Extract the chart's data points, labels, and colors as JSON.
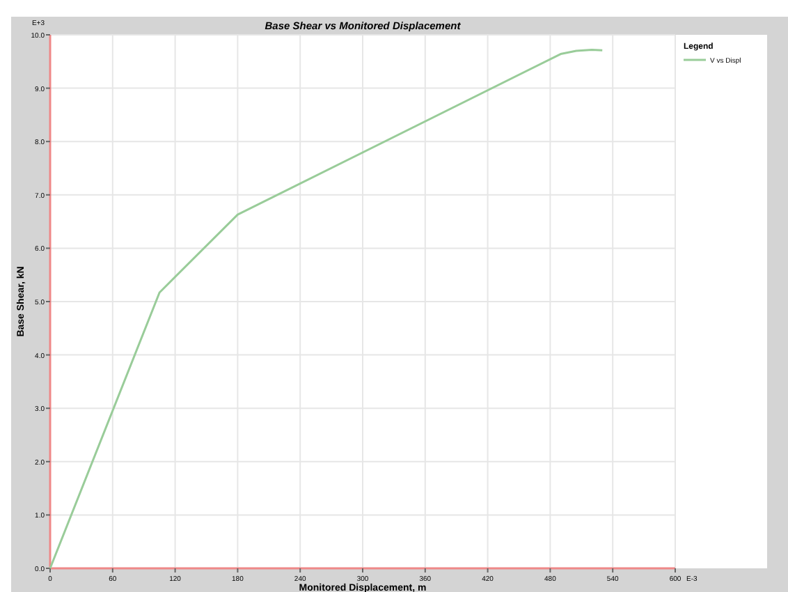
{
  "chart_data": {
    "type": "line",
    "title": "Base Shear vs Monitored Displacement",
    "xlabel": "Monitored Displacement, m",
    "ylabel": "Base Shear, kN",
    "legend_title": "Legend",
    "annotations": [
      "E+3",
      "E-3"
    ],
    "x": [
      0,
      105,
      180,
      490,
      505,
      520,
      530
    ],
    "series": [
      {
        "name": "V vs Displ",
        "color": "#99cc99",
        "values": [
          0,
          5.17,
          6.63,
          9.64,
          9.7,
          9.72,
          9.71
        ]
      }
    ],
    "xlim": [
      0,
      600
    ],
    "xticks": [
      0,
      60,
      120,
      180,
      240,
      300,
      360,
      420,
      480,
      540,
      600
    ],
    "ylim": [
      0,
      10
    ],
    "yticks": [
      {
        "value": 0,
        "label": "0.0"
      },
      {
        "value": 1,
        "label": "1.0"
      },
      {
        "value": 2,
        "label": "2.0"
      },
      {
        "value": 3,
        "label": "3.0"
      },
      {
        "value": 4,
        "label": "4.0"
      },
      {
        "value": 5,
        "label": "5.0"
      },
      {
        "value": 6,
        "label": "6.0"
      },
      {
        "value": 7,
        "label": "7.0"
      },
      {
        "value": 8,
        "label": "8.0"
      },
      {
        "value": 9,
        "label": "9.0"
      },
      {
        "value": 10,
        "label": "10.0"
      }
    ],
    "grid": true,
    "legend": "top right",
    "marker": "none",
    "line_style": "solid"
  }
}
